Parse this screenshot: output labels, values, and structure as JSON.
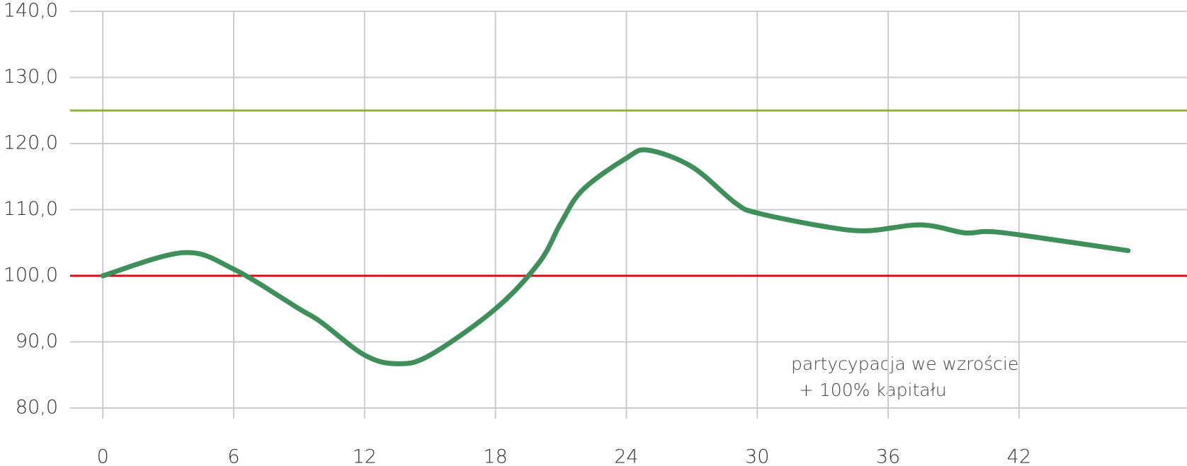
{
  "chart_data": {
    "type": "line",
    "annotation": [
      "partycypacja we wzroście",
      "+ 100% kapitału"
    ],
    "x": [
      0,
      3.7,
      6,
      9,
      10,
      12,
      13.5,
      15,
      18,
      20,
      21,
      22,
      24,
      25,
      27,
      29,
      30,
      33,
      35,
      37.5,
      39.5,
      40.5,
      42,
      47
    ],
    "series": [
      {
        "color": "#3f8f5a",
        "values": [
          100,
          103.5,
          101,
          95,
          93,
          88,
          86.7,
          88,
          95,
          102,
          108,
          113,
          117.8,
          119,
          116.5,
          111,
          109.5,
          107.5,
          106.8,
          107.7,
          106.5,
          106.7,
          106.2,
          103.8
        ]
      }
    ],
    "reference_lines": [
      {
        "value": 100,
        "color": "#e30613"
      },
      {
        "value": 125,
        "color": "#8db33a"
      }
    ],
    "xlim": [
      -1.5,
      49.7
    ],
    "ylim": [
      80,
      140
    ],
    "xticks": [
      0,
      6,
      12,
      18,
      24,
      30,
      36,
      42
    ],
    "yticks": [
      {
        "value": 80,
        "label": "80,0"
      },
      {
        "value": 90,
        "label": "90,0"
      },
      {
        "value": 100,
        "label": "100,0"
      },
      {
        "value": 110,
        "label": "110,0"
      },
      {
        "value": 120,
        "label": "120,0"
      },
      {
        "value": 130,
        "label": "130,0"
      },
      {
        "value": 140,
        "label": "140,0"
      }
    ],
    "grid": true
  }
}
